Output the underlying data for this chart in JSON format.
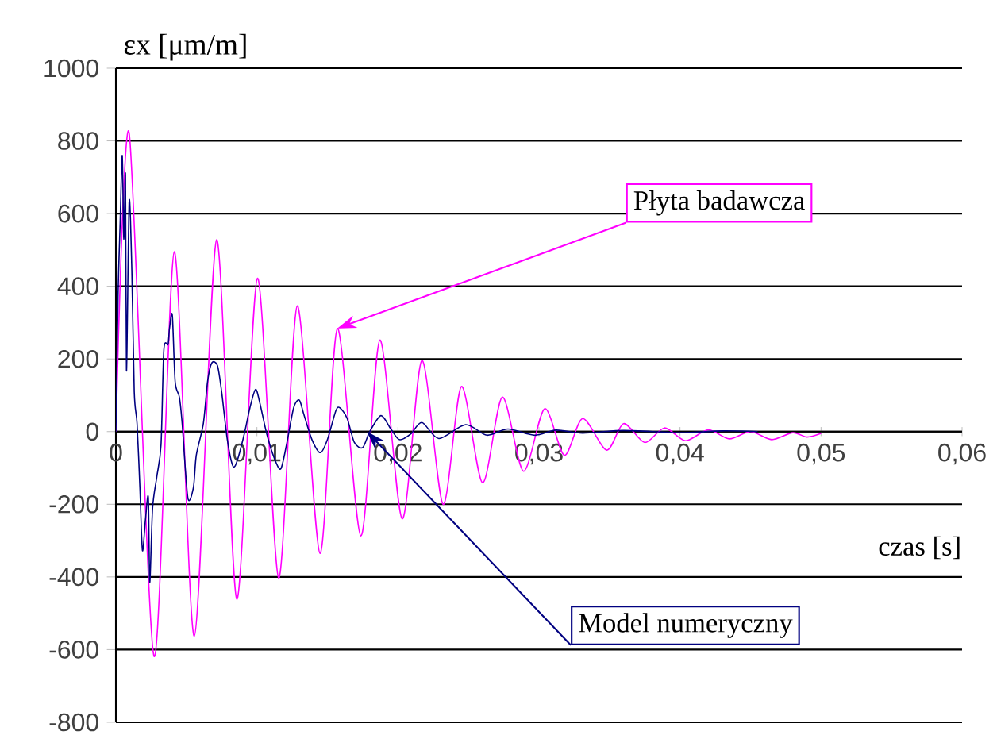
{
  "chart_data": {
    "type": "line",
    "xlabel": "czas [s]",
    "ylabel": "εx [μm/m]",
    "xlim": [
      0,
      0.06
    ],
    "ylim": [
      -800,
      1000
    ],
    "xticks": [
      0,
      {
        "value": 0.01,
        "label": "0,01"
      },
      {
        "value": 0.02,
        "label": "0,02"
      },
      {
        "value": 0.03,
        "label": "0,03"
      },
      {
        "value": 0.04,
        "label": "0,04"
      },
      {
        "value": 0.05,
        "label": "0,05"
      },
      {
        "value": 0.06,
        "label": "0,06"
      }
    ],
    "yticks": [
      -800,
      -600,
      -400,
      -200,
      0,
      200,
      400,
      600,
      800,
      1000
    ],
    "grid": "y",
    "legend": false,
    "marker": "none",
    "line_style": "solid",
    "series": [
      {
        "color": "#ff00ff",
        "x": [
          0,
          0.00094,
          0.0027,
          0.00414,
          0.00556,
          0.00714,
          0.00857,
          0.01004,
          0.01154,
          0.01286,
          0.01447,
          0.01571,
          0.01737,
          0.01872,
          0.0203,
          0.0217,
          0.0232,
          0.0245,
          0.026,
          0.0274,
          0.0289,
          0.0304,
          0.0318,
          0.0331,
          0.0348,
          0.036,
          0.0375,
          0.0389,
          0.0404,
          0.042,
          0.0435,
          0.045,
          0.0465,
          0.048,
          0.049,
          0.05
        ],
        "values": [
          0,
          822,
          -618,
          495,
          -563,
          528,
          -461,
          422,
          -403,
          346,
          -335,
          284,
          -287,
          252,
          -240,
          196,
          -200,
          124,
          -141,
          95,
          -109,
          63,
          -65,
          36,
          -51,
          22,
          -30,
          10,
          -25,
          5,
          -20,
          0,
          -22,
          -3,
          -15,
          -5
        ]
      },
      {
        "color": "#000080",
        "x": [
          0,
          0.00015,
          0.0003,
          0.00045,
          0.00056,
          0.00068,
          0.00075,
          0.00094,
          0.00113,
          0.0013,
          0.0015,
          0.0017,
          0.00188,
          0.0021,
          0.0023,
          0.0024,
          0.0026,
          0.0029,
          0.0032,
          0.0034,
          0.0037,
          0.0038,
          0.004,
          0.0042,
          0.0045,
          0.0047,
          0.0051,
          0.0055,
          0.0057,
          0.0062,
          0.0065,
          0.0068,
          0.0072,
          0.0075,
          0.0079,
          0.0083,
          0.0086,
          0.0091,
          0.0095,
          0.0099,
          0.0102,
          0.0107,
          0.0113,
          0.0117,
          0.0121,
          0.0126,
          0.013,
          0.0133,
          0.0139,
          0.0145,
          0.015,
          0.0156,
          0.0159,
          0.0164,
          0.0169,
          0.0175,
          0.018,
          0.0188,
          0.0195,
          0.0201,
          0.0209,
          0.0217,
          0.0229,
          0.0248,
          0.0263,
          0.0278,
          0.0297,
          0.0312,
          0.0331,
          0.036,
          0.04,
          0.043,
          0.0455
        ],
        "values": [
          0,
          370,
          575,
          760,
          530,
          705,
          167,
          633,
          444,
          109,
          22,
          -153,
          -327,
          -240,
          -182,
          -415,
          -211,
          -124,
          -36,
          225,
          240,
          284,
          320,
          138,
          95,
          22,
          -182,
          -153,
          -65,
          22,
          138,
          189,
          182,
          109,
          -22,
          -95,
          -80,
          -7,
          65,
          116,
          80,
          -7,
          -80,
          -102,
          -36,
          65,
          87,
          51,
          -22,
          -58,
          -22,
          58,
          65,
          36,
          -29,
          -44,
          0,
          44,
          7,
          -22,
          -7,
          25,
          -19,
          19,
          -10,
          7,
          -10,
          4,
          -4,
          3,
          -3,
          2,
          0
        ]
      }
    ],
    "annotations": [
      {
        "text": "Płyta badawcza",
        "x": 0.0157,
        "y": 284
      },
      {
        "text": "Model numeryczny",
        "x": 0.0178,
        "y": 0
      }
    ]
  }
}
